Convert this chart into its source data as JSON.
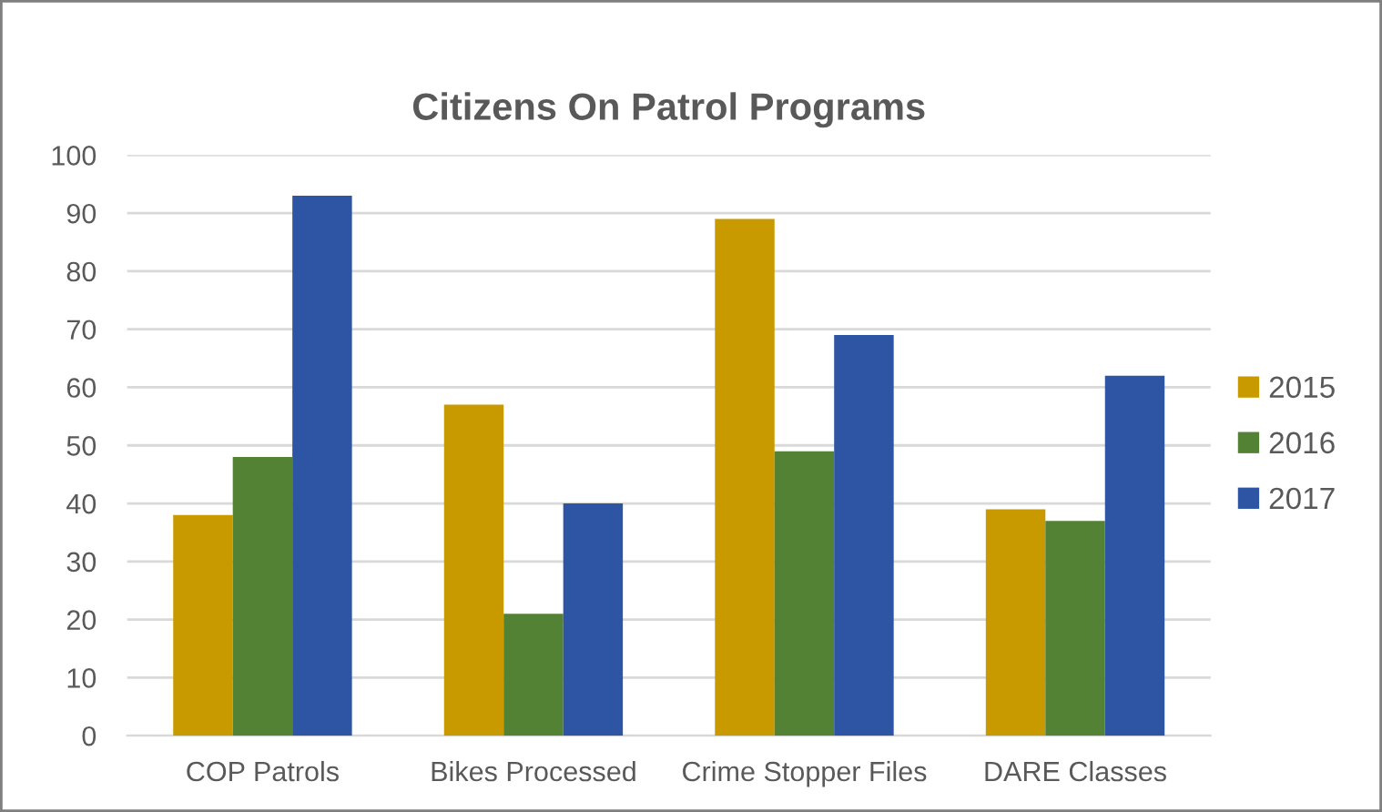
{
  "chart_data": {
    "type": "bar",
    "title": "Citizens On Patrol Programs",
    "categories": [
      "COP Patrols",
      "Bikes Processed",
      "Crime Stopper Files",
      "DARE Classes"
    ],
    "series": [
      {
        "name": "2015",
        "color": "#c99a00",
        "values": [
          38,
          57,
          89,
          39
        ]
      },
      {
        "name": "2016",
        "color": "#548235",
        "values": [
          48,
          21,
          49,
          37
        ]
      },
      {
        "name": "2017",
        "color": "#2e55a4",
        "values": [
          93,
          40,
          69,
          62
        ]
      }
    ],
    "ylim": [
      0,
      100
    ],
    "yticks": [
      0,
      10,
      20,
      30,
      40,
      50,
      60,
      70,
      80,
      90,
      100
    ],
    "grid": "y",
    "legend": "right"
  }
}
